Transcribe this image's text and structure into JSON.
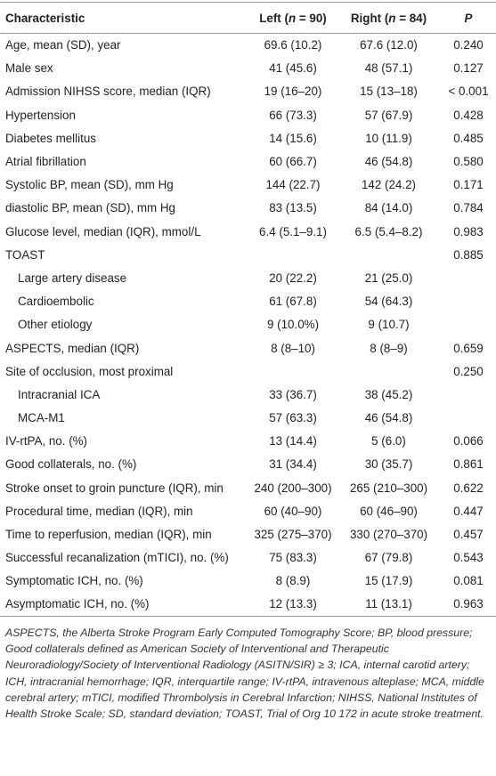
{
  "table": {
    "header": [
      [
        {
          "text": "Characteristic"
        }
      ],
      [
        {
          "text": "Left ("
        },
        {
          "text": "n",
          "italic": true
        },
        {
          "text": " = 90)"
        }
      ],
      [
        {
          "text": "Right ("
        },
        {
          "text": "n",
          "italic": true
        },
        {
          "text": " = 84)"
        }
      ],
      [
        {
          "text": "P",
          "italic": true
        }
      ]
    ],
    "rows": [
      [
        "Age, mean (SD), year",
        "69.6 (10.2)",
        "67.6 (12.0)",
        "0.240"
      ],
      [
        "Male sex",
        "41 (45.6)",
        "48 (57.1)",
        "0.127"
      ],
      [
        "Admission NIHSS score, median (IQR)",
        "19 (16–20)",
        "15 (13–18)",
        "< 0.001"
      ],
      [
        "Hypertension",
        "66 (73.3)",
        "57 (67.9)",
        "0.428"
      ],
      [
        "Diabetes mellitus",
        "14 (15.6)",
        "10 (11.9)",
        "0.485"
      ],
      [
        "Atrial fibrillation",
        "60 (66.7)",
        "46 (54.8)",
        "0.580"
      ],
      [
        "Systolic BP, mean (SD), mm Hg",
        "144 (22.7)",
        "142 (24.2)",
        "0.171"
      ],
      [
        "diastolic BP, mean (SD), mm Hg",
        "83 (13.5)",
        "84 (14.0)",
        "0.784"
      ],
      [
        "Glucose level, median (IQR), mmol/L",
        "6.4 (5.1–9.1)",
        "6.5 (5.4–8.2)",
        "0.983"
      ],
      [
        "TOAST",
        "",
        "",
        "0.885"
      ],
      [
        "Large artery disease",
        "20 (22.2)",
        "21 (25.0)",
        ""
      ],
      [
        "Cardioembolic",
        "61 (67.8)",
        "54 (64.3)",
        ""
      ],
      [
        "Other etiology",
        "9 (10.0%)",
        "9 (10.7)",
        ""
      ],
      [
        "ASPECTS, median (IQR)",
        "8 (8–10)",
        "8 (8–9)",
        "0.659"
      ],
      [
        "Site of occlusion, most proximal",
        "",
        "",
        "0.250"
      ],
      [
        "Intracranial ICA",
        "33 (36.7)",
        "38 (45.2)",
        ""
      ],
      [
        "MCA-M1",
        "57 (63.3)",
        "46 (54.8)",
        ""
      ],
      [
        "IV-rtPA, no. (%)",
        "13 (14.4)",
        "5 (6.0)",
        "0.066"
      ],
      [
        "Good collaterals, no. (%)",
        "31 (34.4)",
        "30 (35.7)",
        "0.861"
      ],
      [
        "Stroke onset to groin puncture (IQR), min",
        "240 (200–300)",
        "265 (210–300)",
        "0.622"
      ],
      [
        "Procedural time, median (IQR), min",
        "60 (40–90)",
        "60 (46–90)",
        "0.447"
      ],
      [
        "Time to reperfusion, median (IQR), min",
        "325 (275–370)",
        "330 (270–370)",
        "0.457"
      ],
      [
        "Successful recanalization (mTICI), no. (%)",
        "75 (83.3)",
        "67 (79.8)",
        "0.543"
      ],
      [
        "Symptomatic ICH, no. (%)",
        "8 (8.9)",
        "15 (17.9)",
        "0.081"
      ],
      [
        "Asymptomatic ICH, no. (%)",
        "12 (13.3)",
        "11 (13.1)",
        "0.963"
      ]
    ],
    "indented_rows": [
      10,
      11,
      12,
      15,
      16
    ]
  },
  "footnote": "ASPECTS, the Alberta Stroke Program Early Computed Tomography Score; BP, blood pressure; Good collaterals defined as American Society of Interventional and Therapeutic Neuroradiology/Society of Interventional Radiology (ASITN/SIR) ≥ 3; ICA, internal carotid artery; ICH, intracranial hemorrhage; IQR, interquartile range; IV-rtPA, intravenous alteplase; MCA, middle cerebral artery; mTICI, modified Thrombolysis in Cerebral Infarction; NIHSS, National Institutes of Health Stroke Scale; SD, standard deviation; TOAST, Trial of Org 10 172 in acute stroke treatment."
}
